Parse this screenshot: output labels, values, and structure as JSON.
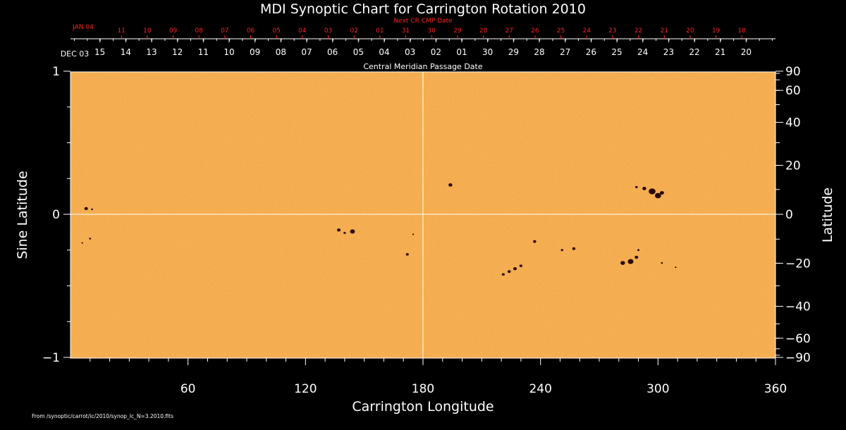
{
  "chart_data": {
    "type": "heatmap",
    "title": "MDI Synoptic Chart for Carrington Rotation 2010",
    "xlabel": "Carrington Longitude",
    "ylabel_left": "Sine Latitude",
    "ylabel_right": "Latitude",
    "xlim": [
      0,
      360
    ],
    "ylim": [
      -1,
      1
    ],
    "x_ticks": [
      60,
      120,
      180,
      240,
      300,
      360
    ],
    "y_left_ticks": [
      {
        "v": 1,
        "label": "1"
      },
      {
        "v": 0,
        "label": "0"
      },
      {
        "v": -1,
        "label": "−1"
      }
    ],
    "y_right_ticks": [
      {
        "deg": 90,
        "label": "90"
      },
      {
        "deg": 60,
        "label": "60"
      },
      {
        "deg": 40,
        "label": "40"
      },
      {
        "deg": 20,
        "label": "20"
      },
      {
        "deg": 0,
        "label": "0"
      },
      {
        "deg": -20,
        "label": "−20"
      },
      {
        "deg": -40,
        "label": "−40"
      },
      {
        "deg": -60,
        "label": "−60"
      },
      {
        "deg": -90,
        "label": "−90"
      }
    ],
    "cmp_axis_title": "Central Meridian Passage Date",
    "cmp_start_label": "DEC 03",
    "cmp_dates": [
      {
        "lon": 15,
        "label": "15"
      },
      {
        "lon": 28.2,
        "label": "14"
      },
      {
        "lon": 41.4,
        "label": "13"
      },
      {
        "lon": 54.6,
        "label": "12"
      },
      {
        "lon": 67.8,
        "label": "11"
      },
      {
        "lon": 81.0,
        "label": "10"
      },
      {
        "lon": 94.2,
        "label": "09"
      },
      {
        "lon": 107.4,
        "label": "08"
      },
      {
        "lon": 120.6,
        "label": "07"
      },
      {
        "lon": 133.8,
        "label": "06"
      },
      {
        "lon": 147.0,
        "label": "05"
      },
      {
        "lon": 160.2,
        "label": "04"
      },
      {
        "lon": 173.4,
        "label": "03"
      },
      {
        "lon": 186.6,
        "label": "02"
      },
      {
        "lon": 199.8,
        "label": "01"
      },
      {
        "lon": 213.0,
        "label": "30"
      },
      {
        "lon": 226.2,
        "label": "29"
      },
      {
        "lon": 239.4,
        "label": "28"
      },
      {
        "lon": 252.6,
        "label": "27"
      },
      {
        "lon": 265.8,
        "label": "26"
      },
      {
        "lon": 279.0,
        "label": "25"
      },
      {
        "lon": 292.2,
        "label": "24"
      },
      {
        "lon": 305.4,
        "label": "23"
      },
      {
        "lon": 318.6,
        "label": "22"
      },
      {
        "lon": 331.8,
        "label": "21"
      },
      {
        "lon": 345.0,
        "label": "20"
      }
    ],
    "next_cr_title": "Next CR CMP Date",
    "next_cr_start_label": "JAN 04",
    "next_cr_dates": [
      {
        "lon": 26.0,
        "label": "11"
      },
      {
        "lon": 39.2,
        "label": "10"
      },
      {
        "lon": 52.4,
        "label": "09"
      },
      {
        "lon": 65.6,
        "label": "08"
      },
      {
        "lon": 78.8,
        "label": "07"
      },
      {
        "lon": 92.0,
        "label": "06"
      },
      {
        "lon": 105.2,
        "label": "05"
      },
      {
        "lon": 118.4,
        "label": "04"
      },
      {
        "lon": 131.6,
        "label": "03"
      },
      {
        "lon": 144.8,
        "label": "02"
      },
      {
        "lon": 158.0,
        "label": "01"
      },
      {
        "lon": 171.2,
        "label": "31"
      },
      {
        "lon": 184.4,
        "label": "30"
      },
      {
        "lon": 197.6,
        "label": "29"
      },
      {
        "lon": 210.8,
        "label": "28"
      },
      {
        "lon": 224.0,
        "label": "27"
      },
      {
        "lon": 237.2,
        "label": "26"
      },
      {
        "lon": 250.4,
        "label": "25"
      },
      {
        "lon": 263.6,
        "label": "24"
      },
      {
        "lon": 276.8,
        "label": "23"
      },
      {
        "lon": 290.0,
        "label": "22"
      },
      {
        "lon": 303.2,
        "label": "21"
      },
      {
        "lon": 316.4,
        "label": "20"
      },
      {
        "lon": 329.6,
        "label": "19"
      },
      {
        "lon": 342.8,
        "label": "18"
      }
    ],
    "sunspots": [
      {
        "lon": 8,
        "sinlat": 0.04,
        "size": 2.2
      },
      {
        "lon": 11,
        "sinlat": 0.035,
        "size": 1.2
      },
      {
        "lon": 10,
        "sinlat": -0.17,
        "size": 1.2
      },
      {
        "lon": 6,
        "sinlat": -0.2,
        "size": 1.0
      },
      {
        "lon": 137,
        "sinlat": -0.11,
        "size": 2.2
      },
      {
        "lon": 144,
        "sinlat": -0.12,
        "size": 3.0
      },
      {
        "lon": 140,
        "sinlat": -0.13,
        "size": 1.5
      },
      {
        "lon": 172,
        "sinlat": -0.28,
        "size": 1.8
      },
      {
        "lon": 175,
        "sinlat": -0.14,
        "size": 1.0
      },
      {
        "lon": 194,
        "sinlat": 0.205,
        "size": 2.4
      },
      {
        "lon": 221,
        "sinlat": -0.42,
        "size": 1.8
      },
      {
        "lon": 224,
        "sinlat": -0.4,
        "size": 2.0
      },
      {
        "lon": 227,
        "sinlat": -0.38,
        "size": 2.2
      },
      {
        "lon": 230,
        "sinlat": -0.36,
        "size": 1.8
      },
      {
        "lon": 237,
        "sinlat": -0.19,
        "size": 2.0
      },
      {
        "lon": 251,
        "sinlat": -0.25,
        "size": 1.5
      },
      {
        "lon": 257,
        "sinlat": -0.24,
        "size": 2.0
      },
      {
        "lon": 286,
        "sinlat": -0.33,
        "size": 3.5
      },
      {
        "lon": 282,
        "sinlat": -0.34,
        "size": 2.8
      },
      {
        "lon": 289,
        "sinlat": -0.3,
        "size": 2.2
      },
      {
        "lon": 290,
        "sinlat": -0.25,
        "size": 1.4
      },
      {
        "lon": 297,
        "sinlat": 0.16,
        "size": 4.2
      },
      {
        "lon": 300,
        "sinlat": 0.13,
        "size": 3.8
      },
      {
        "lon": 293,
        "sinlat": 0.18,
        "size": 2.4
      },
      {
        "lon": 302,
        "sinlat": 0.15,
        "size": 2.6
      },
      {
        "lon": 289,
        "sinlat": 0.19,
        "size": 1.6
      },
      {
        "lon": 309,
        "sinlat": -0.37,
        "size": 1.0
      },
      {
        "lon": 302,
        "sinlat": -0.34,
        "size": 1.2
      }
    ],
    "colors": {
      "background": "#000000",
      "map": "#f5a94e",
      "map_dark": "#e88a28",
      "spot": "#2a0a00",
      "text": "#ffffff",
      "next_cr": "#ff2020"
    }
  },
  "footer_source": "From /synoptic/carrot/ic/2010/synop_Ic_N=3.2010.fits"
}
